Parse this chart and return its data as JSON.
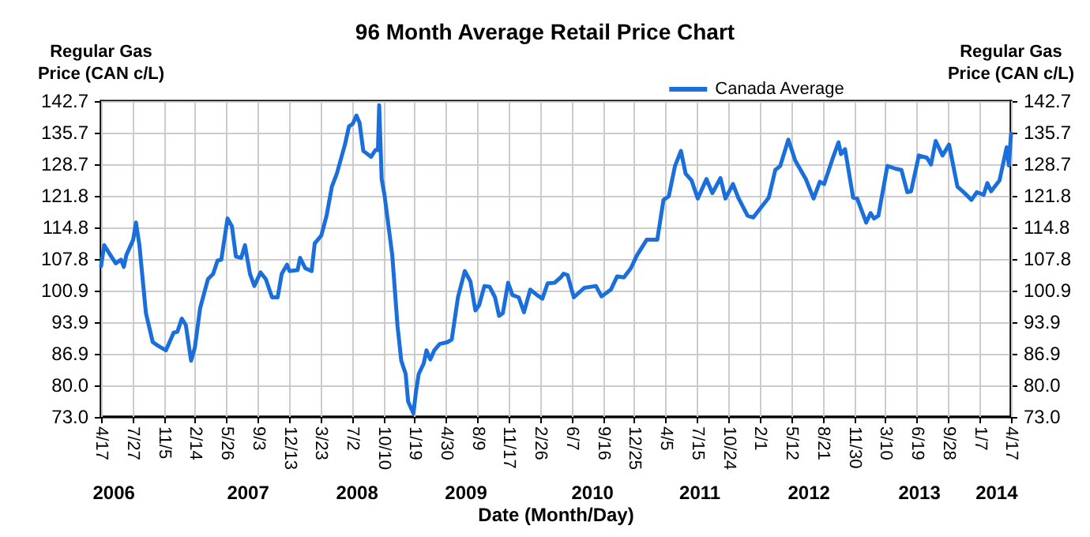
{
  "chart_data": {
    "type": "line",
    "title": "96 Month Average Retail Price Chart",
    "xlabel": "Date (Month/Day)",
    "ylabel": "Regular Gas\nPrice (CAN c/L)",
    "y2label": "Regular Gas\nPrice (CAN c/L)",
    "xlim": [
      "2006-04-17",
      "2014-04-17"
    ],
    "xticks": [
      {
        "value": "2006-04-17",
        "label": "4/17"
      },
      {
        "value": "2006-07-27",
        "label": "7/27"
      },
      {
        "value": "2006-11-05",
        "label": "11/5"
      },
      {
        "value": "2007-02-14",
        "label": "2/14"
      },
      {
        "value": "2007-05-26",
        "label": "5/26"
      },
      {
        "value": "2007-09-03",
        "label": "9/3"
      },
      {
        "value": "2007-12-13",
        "label": "12/13"
      },
      {
        "value": "2008-03-23",
        "label": "3/23"
      },
      {
        "value": "2008-07-02",
        "label": "7/2"
      },
      {
        "value": "2008-10-10",
        "label": "10/10"
      },
      {
        "value": "2009-01-19",
        "label": "1/19"
      },
      {
        "value": "2009-04-30",
        "label": "4/30"
      },
      {
        "value": "2009-08-09",
        "label": "8/9"
      },
      {
        "value": "2009-11-17",
        "label": "11/17"
      },
      {
        "value": "2010-02-26",
        "label": "2/26"
      },
      {
        "value": "2010-06-07",
        "label": "6/7"
      },
      {
        "value": "2010-09-16",
        "label": "9/16"
      },
      {
        "value": "2010-12-25",
        "label": "12/25"
      },
      {
        "value": "2011-04-05",
        "label": "4/5"
      },
      {
        "value": "2011-07-15",
        "label": "7/15"
      },
      {
        "value": "2011-10-24",
        "label": "10/24"
      },
      {
        "value": "2012-02-01",
        "label": "2/1"
      },
      {
        "value": "2012-05-12",
        "label": "5/12"
      },
      {
        "value": "2012-08-21",
        "label": "8/21"
      },
      {
        "value": "2012-11-30",
        "label": "11/30"
      },
      {
        "value": "2013-03-10",
        "label": "3/10"
      },
      {
        "value": "2013-06-19",
        "label": "6/19"
      },
      {
        "value": "2013-09-28",
        "label": "9/28"
      },
      {
        "value": "2014-01-07",
        "label": "1/7"
      },
      {
        "value": "2014-04-17",
        "label": "4/17"
      }
    ],
    "x2lim": [
      "2006-04-17",
      "2014-04-17"
    ],
    "x2ticks": [
      {
        "value": "2006-05-28",
        "label": "2006"
      },
      {
        "value": "2007-08-02",
        "label": "2007"
      },
      {
        "value": "2008-07-17",
        "label": "2008"
      },
      {
        "value": "2009-07-02",
        "label": "2009"
      },
      {
        "value": "2010-08-12",
        "label": "2010"
      },
      {
        "value": "2011-07-23",
        "label": "2011"
      },
      {
        "value": "2012-07-07",
        "label": "2012"
      },
      {
        "value": "2013-06-27",
        "label": "2013"
      },
      {
        "value": "2014-03-02",
        "label": "2014"
      }
    ],
    "ylim": [
      73,
      142.7
    ],
    "yticks": [
      {
        "value": 73,
        "label": "73.0"
      },
      {
        "value": 80,
        "label": "80.0"
      },
      86.9,
      93.9,
      100.9,
      107.8,
      114.8,
      121.8,
      128.7,
      135.7,
      142.7
    ],
    "y2lim": [
      73,
      142.7
    ],
    "y2ticks": [
      {
        "value": 73,
        "label": "73.0"
      },
      {
        "value": 80,
        "label": "80.0"
      },
      86.9,
      93.9,
      100.9,
      107.8,
      114.8,
      121.8,
      128.7,
      135.7,
      142.7
    ],
    "grid": true,
    "legend": "top right",
    "marker": "none",
    "line_style": "solid",
    "x": [
      "2006-04-17",
      "2006-04-27",
      "2006-05-17",
      "2006-06-03",
      "2006-06-20",
      "2006-06-29",
      "2006-07-07",
      "2006-07-29",
      "2006-08-07",
      "2006-08-18",
      "2006-09-08",
      "2006-09-30",
      "2006-10-17",
      "2006-11-11",
      "2006-12-06",
      "2006-12-18",
      "2007-01-01",
      "2007-01-14",
      "2007-01-31",
      "2007-02-12",
      "2007-03-01",
      "2007-03-26",
      "2007-04-12",
      "2007-04-26",
      "2007-05-08",
      "2007-05-28",
      "2007-06-11",
      "2007-06-24",
      "2007-07-11",
      "2007-07-23",
      "2007-08-08",
      "2007-08-22",
      "2007-09-11",
      "2007-09-28",
      "2007-10-18",
      "2007-11-05",
      "2007-11-18",
      "2007-12-05",
      "2007-12-13",
      "2008-01-08",
      "2008-01-16",
      "2008-02-02",
      "2008-02-22",
      "2008-03-03",
      "2008-03-24",
      "2008-04-10",
      "2008-04-27",
      "2008-05-13",
      "2008-06-08",
      "2008-06-21",
      "2008-07-03",
      "2008-07-15",
      "2008-07-25",
      "2008-08-06",
      "2008-08-31",
      "2008-09-14",
      "2008-09-22",
      "2008-09-26",
      "2008-10-04",
      "2008-10-13",
      "2008-11-07",
      "2008-11-24",
      "2008-12-06",
      "2008-12-20",
      "2008-12-28",
      "2009-01-14",
      "2009-01-22",
      "2009-01-31",
      "2009-02-16",
      "2009-02-25",
      "2009-03-09",
      "2009-03-22",
      "2009-04-08",
      "2009-05-03",
      "2009-05-17",
      "2009-06-06",
      "2009-06-28",
      "2009-07-16",
      "2009-08-01",
      "2009-08-13",
      "2009-08-30",
      "2009-09-16",
      "2009-10-03",
      "2009-10-16",
      "2009-10-28",
      "2009-11-14",
      "2009-11-28",
      "2009-12-18",
      "2010-01-04",
      "2010-01-24",
      "2010-02-15",
      "2010-03-04",
      "2010-03-21",
      "2010-04-12",
      "2010-05-02",
      "2010-05-11",
      "2010-05-24",
      "2010-06-13",
      "2010-07-17",
      "2010-08-23",
      "2010-09-10",
      "2010-10-10",
      "2010-10-30",
      "2010-11-21",
      "2010-12-13",
      "2011-01-02",
      "2011-02-02",
      "2011-03-08",
      "2011-03-28",
      "2011-04-14",
      "2011-05-04",
      "2011-05-23",
      "2011-06-07",
      "2011-06-26",
      "2011-07-16",
      "2011-08-13",
      "2011-09-01",
      "2011-09-27",
      "2011-10-13",
      "2011-11-06",
      "2011-11-23",
      "2011-12-23",
      "2012-01-10",
      "2012-02-29",
      "2012-03-21",
      "2012-04-06",
      "2012-05-02",
      "2012-05-24",
      "2012-06-27",
      "2012-07-22",
      "2012-08-11",
      "2012-08-25",
      "2012-09-19",
      "2012-10-10",
      "2012-10-18",
      "2012-10-31",
      "2012-11-26",
      "2012-12-09",
      "2013-01-07",
      "2013-01-21",
      "2013-02-01",
      "2013-02-15",
      "2013-03-16",
      "2013-04-10",
      "2013-04-30",
      "2013-05-19",
      "2013-05-31",
      "2013-06-25",
      "2013-07-21",
      "2013-08-03",
      "2013-08-18",
      "2013-09-09",
      "2013-09-30",
      "2013-10-27",
      "2013-11-16",
      "2013-12-11",
      "2013-12-28",
      "2014-01-19",
      "2014-01-31",
      "2014-02-12",
      "2014-03-11",
      "2014-04-03",
      "2014-04-10",
      "2014-04-17"
    ],
    "series": [
      {
        "name": "Canada Average",
        "color": "#1a6fdb",
        "values": [
          106.3,
          110.9,
          108.7,
          106.9,
          107.7,
          106.1,
          108.7,
          112.1,
          115.9,
          110.9,
          95.9,
          89.5,
          88.7,
          87.7,
          91.6,
          91.8,
          94.7,
          93.3,
          85.4,
          88.3,
          97.0,
          103.4,
          104.6,
          107.5,
          107.7,
          116.8,
          115.1,
          108.4,
          108.1,
          110.9,
          104.6,
          101.9,
          104.9,
          103.4,
          99.4,
          99.4,
          104.6,
          106.6,
          105.2,
          105.4,
          108.1,
          105.8,
          105.2,
          111.3,
          113.0,
          117.4,
          123.8,
          126.7,
          133.1,
          137.1,
          137.7,
          139.5,
          137.9,
          131.7,
          130.4,
          131.9,
          131.9,
          141.8,
          125.5,
          122.0,
          108.7,
          93.0,
          85.4,
          82.5,
          76.4,
          73.8,
          78.5,
          82.5,
          84.8,
          87.7,
          85.7,
          87.7,
          89.1,
          89.5,
          90.1,
          99.4,
          105.2,
          102.9,
          96.5,
          97.7,
          101.9,
          101.7,
          99.4,
          95.3,
          95.9,
          102.6,
          99.9,
          99.4,
          96.1,
          101.1,
          99.9,
          99.1,
          102.5,
          102.6,
          103.8,
          104.6,
          104.3,
          99.4,
          101.5,
          101.9,
          99.6,
          101.1,
          104.0,
          103.8,
          105.8,
          108.7,
          112.1,
          112.1,
          120.9,
          121.7,
          128.4,
          131.7,
          126.7,
          125.2,
          121.2,
          125.5,
          122.4,
          125.7,
          121.2,
          124.4,
          121.4,
          117.4,
          117.0,
          121.4,
          127.5,
          128.4,
          134.2,
          129.6,
          125.5,
          121.2,
          124.9,
          124.4,
          129.6,
          133.6,
          131.0,
          132.1,
          121.4,
          121.2,
          115.9,
          118.0,
          116.8,
          117.4,
          128.4,
          127.8,
          127.5,
          122.6,
          122.8,
          130.7,
          130.2,
          128.7,
          133.9,
          130.7,
          133.1,
          123.8,
          122.6,
          120.9,
          122.6,
          122.0,
          124.6,
          122.8,
          125.2,
          132.5,
          128.5,
          135.5
        ]
      }
    ]
  }
}
